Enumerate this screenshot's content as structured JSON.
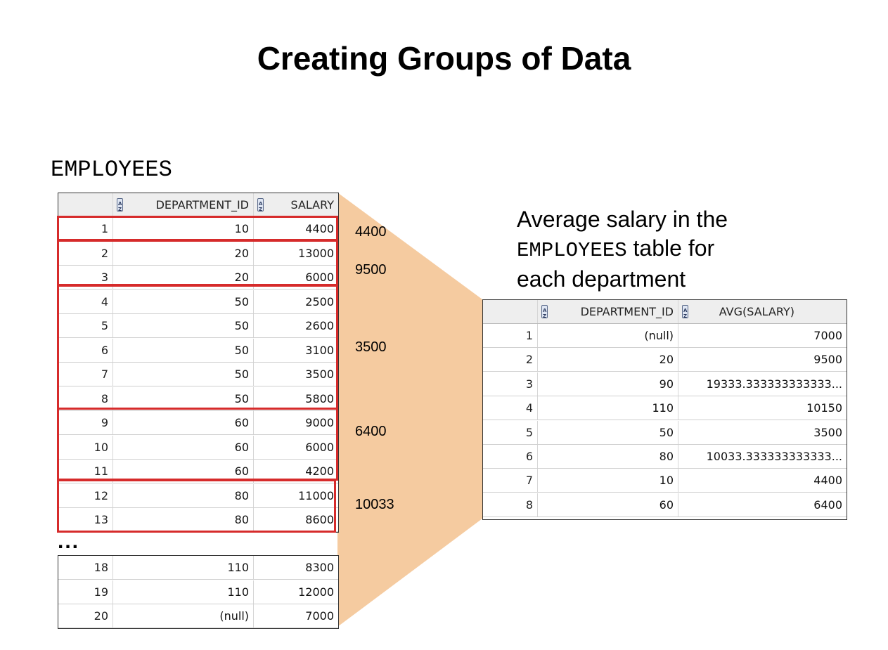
{
  "title": "Creating Groups of Data",
  "source_table_label": "EMPLOYEES",
  "employees_table": {
    "headers": [
      "",
      "DEPARTMENT_ID",
      "SALARY"
    ],
    "rows": [
      {
        "n": "1",
        "dept": "10",
        "salary": "4400"
      },
      {
        "n": "2",
        "dept": "20",
        "salary": "13000"
      },
      {
        "n": "3",
        "dept": "20",
        "salary": "6000"
      },
      {
        "n": "4",
        "dept": "50",
        "salary": "2500"
      },
      {
        "n": "5",
        "dept": "50",
        "salary": "2600"
      },
      {
        "n": "6",
        "dept": "50",
        "salary": "3100"
      },
      {
        "n": "7",
        "dept": "50",
        "salary": "3500"
      },
      {
        "n": "8",
        "dept": "50",
        "salary": "5800"
      },
      {
        "n": "9",
        "dept": "60",
        "salary": "9000"
      },
      {
        "n": "10",
        "dept": "60",
        "salary": "6000"
      },
      {
        "n": "11",
        "dept": "60",
        "salary": "4200"
      },
      {
        "n": "12",
        "dept": "80",
        "salary": "11000"
      },
      {
        "n": "13",
        "dept": "80",
        "salary": "8600"
      }
    ],
    "ellipsis": "...",
    "tail_rows": [
      {
        "n": "18",
        "dept": "110",
        "salary": "8300"
      },
      {
        "n": "19",
        "dept": "110",
        "salary": "12000"
      },
      {
        "n": "20",
        "dept": "(null)",
        "salary": "7000"
      }
    ]
  },
  "group_averages": [
    "4400",
    "9500",
    "3500",
    "6400",
    "10033"
  ],
  "description": {
    "line1": "Average salary in the",
    "table_name": "EMPLOYEES",
    "line2_rest": " table for",
    "line3": "each department"
  },
  "result_table": {
    "headers": [
      "",
      "DEPARTMENT_ID",
      "AVG(SALARY)"
    ],
    "rows": [
      {
        "n": "1",
        "dept": "(null)",
        "avg": "7000"
      },
      {
        "n": "2",
        "dept": "20",
        "avg": "9500"
      },
      {
        "n": "3",
        "dept": "90",
        "avg": "19333.333333333333..."
      },
      {
        "n": "4",
        "dept": "110",
        "avg": "10150"
      },
      {
        "n": "5",
        "dept": "50",
        "avg": "3500"
      },
      {
        "n": "6",
        "dept": "80",
        "avg": "10033.333333333333..."
      },
      {
        "n": "7",
        "dept": "10",
        "avg": "4400"
      },
      {
        "n": "8",
        "dept": "60",
        "avg": "6400"
      }
    ]
  },
  "colors": {
    "funnel": "#f5cba0",
    "group_border": "#d62b2b"
  }
}
